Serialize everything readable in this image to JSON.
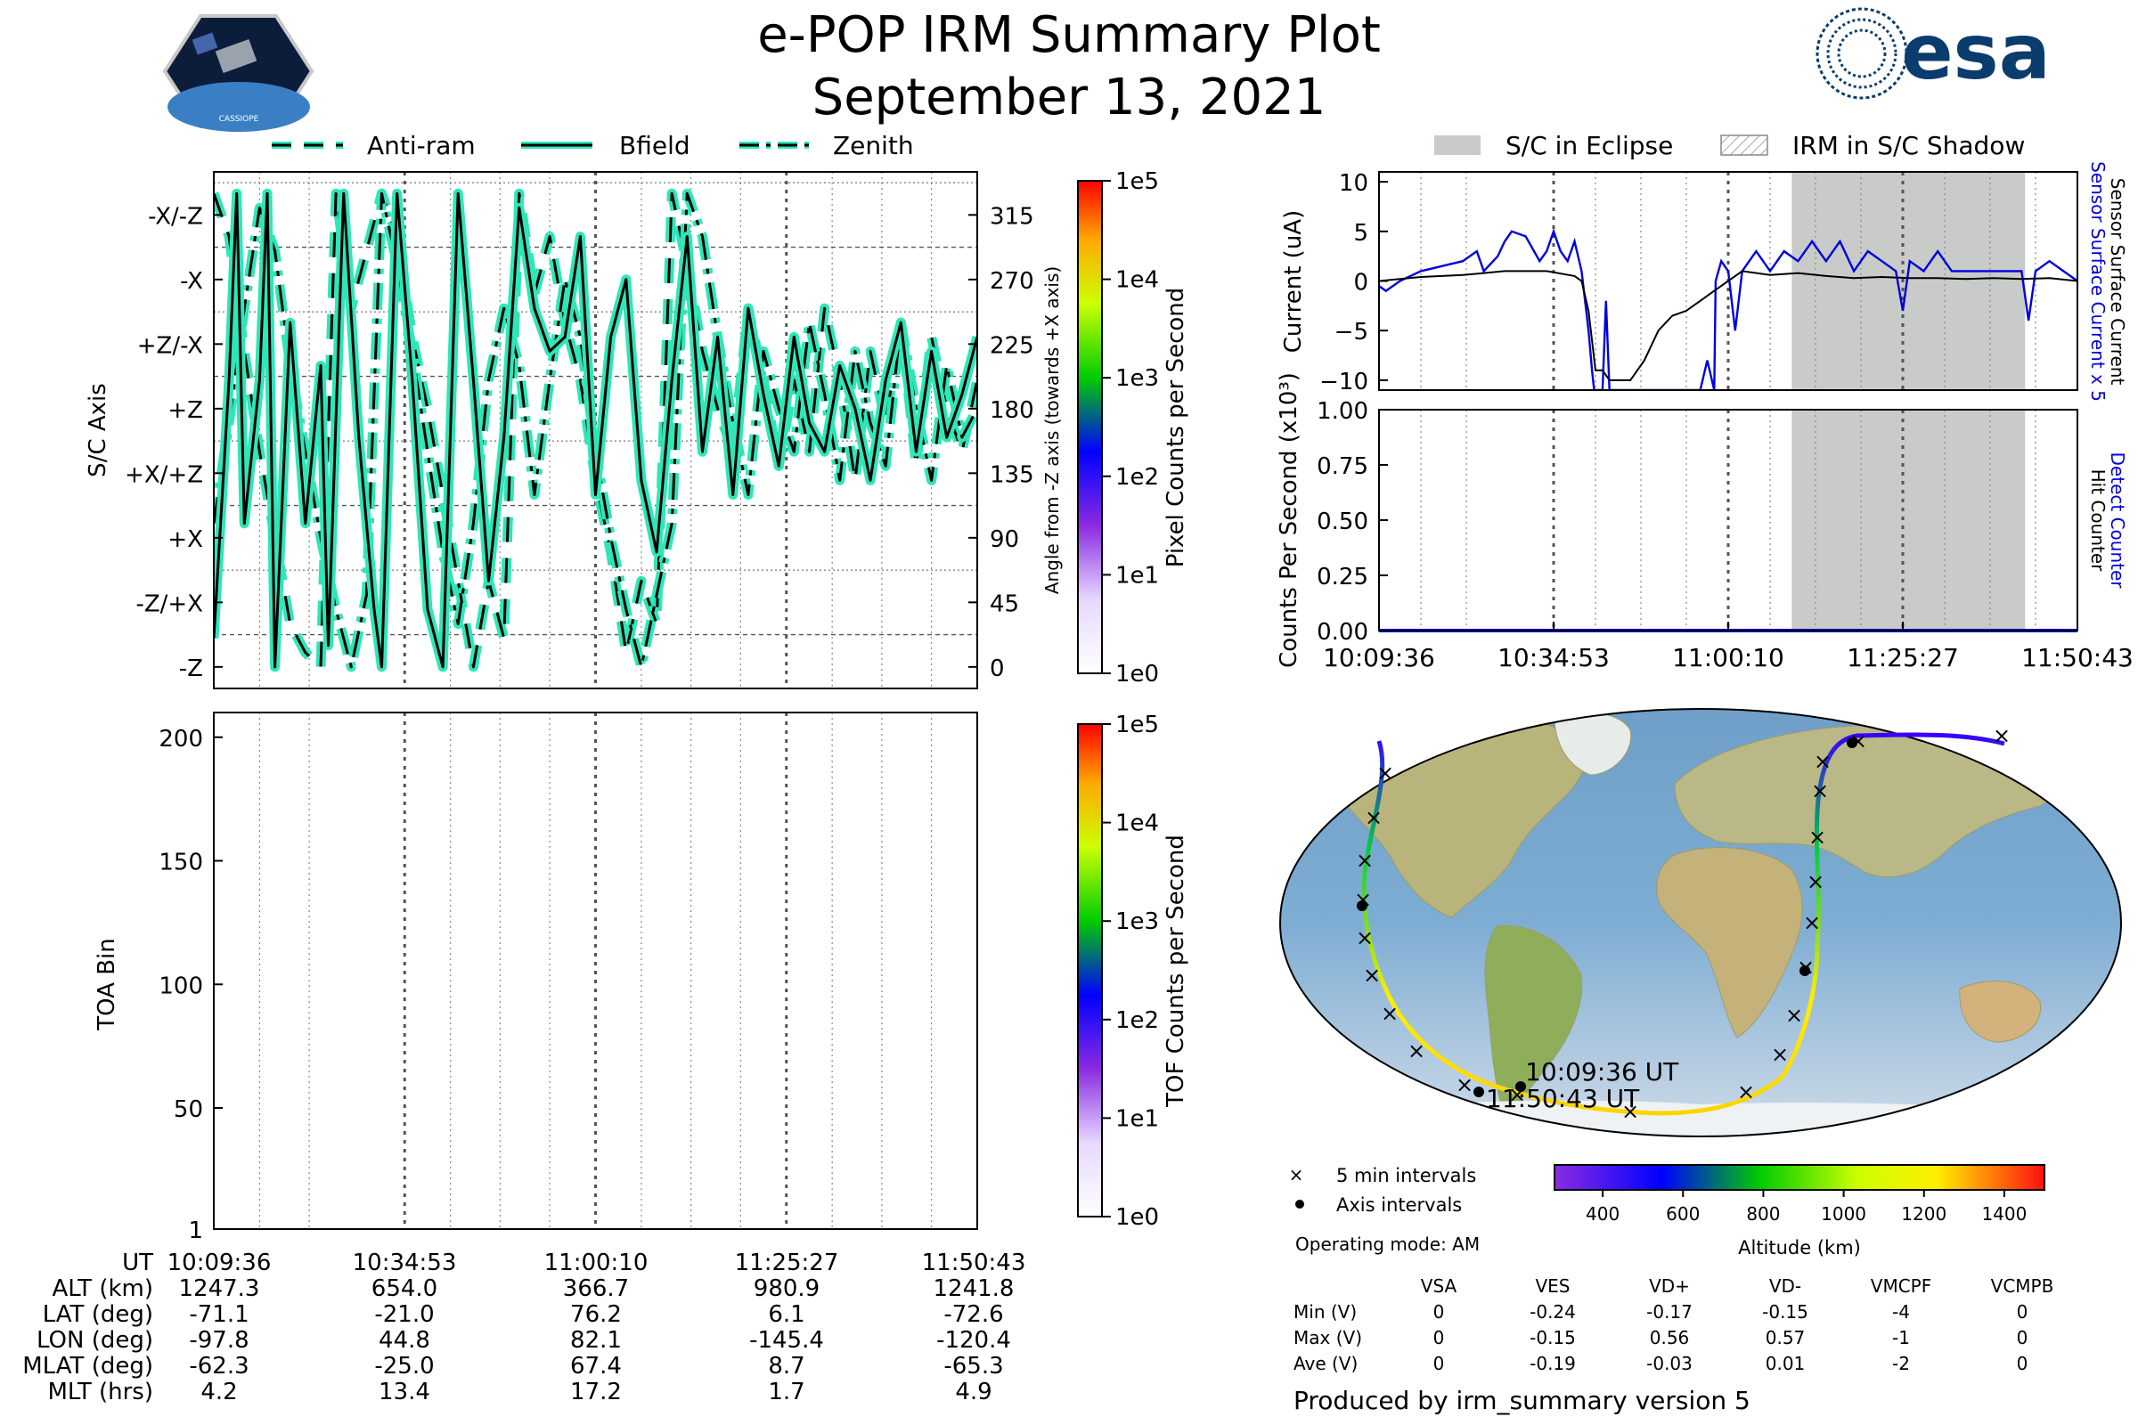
{
  "header": {
    "title": "e-POP IRM Summary Plot",
    "date": "September 13, 2021",
    "mission_logo_text": "CASSIOPE",
    "agency_logo_text": "esa"
  },
  "colors": {
    "trace_fill": "#2ee6b8",
    "trace_core": "#000000",
    "eclipse": "#c8cbc8",
    "current_raw": "#0000e0",
    "current_net": "#000000",
    "counter": "#0000e0"
  },
  "chart_data": [
    {
      "type": "line",
      "name": "orientation",
      "legend": [
        "Anti-ram",
        "Bfield",
        "Zenith"
      ],
      "ylabel": "S/C Axis",
      "ylabel_right": "Angle from -Z axis (towards +X axis)",
      "y_axis_labels": [
        "-X/-Z",
        "-X",
        "+Z/-X",
        "+Z",
        "+X/+Z",
        "+X",
        "-Z/+X",
        "-Z"
      ],
      "right_ticks": [
        "315",
        "270",
        "225",
        "180",
        "135",
        "90",
        "45",
        "0"
      ],
      "ylim": [
        -15,
        345
      ],
      "colorbar_label": "Pixel Counts per Second",
      "colorbar_ticks": [
        "1e5",
        "1e4",
        "1e3",
        "1e2",
        "1e1",
        "1e0"
      ],
      "bfield": [
        [
          0,
          20
        ],
        [
          2,
          200
        ],
        [
          3,
          330
        ],
        [
          4,
          100
        ],
        [
          6,
          200
        ],
        [
          7,
          330
        ],
        [
          8,
          0
        ],
        [
          10,
          240
        ],
        [
          12,
          100
        ],
        [
          14,
          210
        ],
        [
          15,
          15
        ],
        [
          17,
          330
        ],
        [
          19,
          160
        ],
        [
          21,
          40
        ],
        [
          22,
          0
        ],
        [
          24,
          330
        ],
        [
          26,
          200
        ],
        [
          28,
          40
        ],
        [
          30,
          0
        ],
        [
          32,
          330
        ],
        [
          34,
          200
        ],
        [
          36,
          60
        ],
        [
          38,
          160
        ],
        [
          40,
          320
        ],
        [
          42,
          250
        ],
        [
          44,
          220
        ],
        [
          46,
          230
        ],
        [
          48,
          300
        ],
        [
          50,
          120
        ],
        [
          52,
          230
        ],
        [
          54,
          270
        ],
        [
          56,
          130
        ],
        [
          58,
          80
        ],
        [
          60,
          200
        ],
        [
          62,
          300
        ],
        [
          64,
          150
        ],
        [
          66,
          230
        ],
        [
          68,
          120
        ],
        [
          70,
          250
        ],
        [
          72,
          190
        ],
        [
          74,
          140
        ],
        [
          76,
          230
        ],
        [
          78,
          170
        ],
        [
          80,
          150
        ],
        [
          82,
          210
        ],
        [
          84,
          180
        ],
        [
          86,
          130
        ],
        [
          88,
          200
        ],
        [
          90,
          240
        ],
        [
          92,
          150
        ],
        [
          94,
          220
        ],
        [
          96,
          160
        ],
        [
          98,
          190
        ],
        [
          100,
          230
        ]
      ],
      "antiram": [
        [
          0,
          330
        ],
        [
          2,
          300
        ],
        [
          4,
          220
        ],
        [
          6,
          150
        ],
        [
          8,
          90
        ],
        [
          10,
          30
        ],
        [
          12,
          10
        ],
        [
          14,
          0
        ],
        [
          16,
          330
        ],
        [
          18,
          250
        ],
        [
          20,
          290
        ],
        [
          22,
          330
        ],
        [
          24,
          300
        ],
        [
          26,
          230
        ],
        [
          28,
          180
        ],
        [
          30,
          120
        ],
        [
          32,
          60
        ],
        [
          34,
          0
        ],
        [
          36,
          60
        ],
        [
          38,
          20
        ],
        [
          40,
          330
        ],
        [
          42,
          260
        ],
        [
          44,
          300
        ],
        [
          46,
          240
        ],
        [
          48,
          200
        ],
        [
          50,
          130
        ],
        [
          52,
          80
        ],
        [
          54,
          10
        ],
        [
          56,
          60
        ],
        [
          58,
          30
        ],
        [
          60,
          330
        ],
        [
          62,
          280
        ],
        [
          64,
          220
        ],
        [
          66,
          180
        ],
        [
          68,
          150
        ],
        [
          70,
          250
        ],
        [
          72,
          200
        ],
        [
          74,
          140
        ],
        [
          76,
          200
        ],
        [
          78,
          150
        ],
        [
          80,
          250
        ],
        [
          82,
          200
        ],
        [
          84,
          130
        ],
        [
          86,
          220
        ],
        [
          88,
          170
        ],
        [
          90,
          240
        ],
        [
          92,
          140
        ],
        [
          94,
          230
        ],
        [
          96,
          180
        ],
        [
          98,
          150
        ],
        [
          100,
          200
        ]
      ],
      "zenith": [
        [
          0,
          100
        ],
        [
          2,
          170
        ],
        [
          4,
          250
        ],
        [
          6,
          320
        ],
        [
          8,
          290
        ],
        [
          10,
          210
        ],
        [
          12,
          150
        ],
        [
          14,
          90
        ],
        [
          16,
          40
        ],
        [
          18,
          0
        ],
        [
          20,
          50
        ],
        [
          22,
          330
        ],
        [
          24,
          280
        ],
        [
          26,
          220
        ],
        [
          28,
          150
        ],
        [
          30,
          80
        ],
        [
          32,
          30
        ],
        [
          34,
          100
        ],
        [
          36,
          200
        ],
        [
          38,
          250
        ],
        [
          40,
          210
        ],
        [
          42,
          120
        ],
        [
          44,
          200
        ],
        [
          46,
          270
        ],
        [
          48,
          230
        ],
        [
          50,
          150
        ],
        [
          52,
          90
        ],
        [
          54,
          40
        ],
        [
          56,
          0
        ],
        [
          58,
          50
        ],
        [
          60,
          100
        ],
        [
          62,
          330
        ],
        [
          64,
          300
        ],
        [
          66,
          230
        ],
        [
          68,
          170
        ],
        [
          70,
          120
        ],
        [
          72,
          220
        ],
        [
          74,
          180
        ],
        [
          76,
          150
        ],
        [
          78,
          240
        ],
        [
          80,
          190
        ],
        [
          82,
          130
        ],
        [
          84,
          220
        ],
        [
          86,
          170
        ],
        [
          88,
          140
        ],
        [
          90,
          240
        ],
        [
          92,
          180
        ],
        [
          94,
          130
        ],
        [
          96,
          210
        ],
        [
          98,
          160
        ],
        [
          100,
          180
        ]
      ]
    },
    {
      "type": "heatmap",
      "name": "toa",
      "ylabel": "TOA Bin",
      "yticks": [
        "200",
        "150",
        "100",
        "50",
        "1"
      ],
      "ylim": [
        1,
        210
      ],
      "colorbar_label": "TOF Counts per Second",
      "colorbar_ticks": [
        "1e5",
        "1e4",
        "1e3",
        "1e2",
        "1e1",
        "1e0"
      ],
      "values": []
    },
    {
      "type": "line",
      "name": "current",
      "legend": [
        "S/C in Eclipse",
        "IRM in S/C Shadow"
      ],
      "ylabel": "Current (uA)",
      "ylabel_right_1": "Sensor Surface Current x 5",
      "ylabel_right_2": "Sensor Surface Current",
      "yticks": [
        "10",
        "5",
        "0",
        "−5",
        "−10"
      ],
      "ylim": [
        -11,
        11
      ],
      "eclipse_span": [
        0.591,
        0.925
      ],
      "x_ticks": [
        "10:09:36",
        "10:34:53",
        "11:00:10",
        "11:25:27",
        "11:50:43"
      ],
      "series": [
        {
          "values": [
            [
              0,
              -0.5
            ],
            [
              1,
              -1
            ],
            [
              3,
              0
            ],
            [
              6,
              1
            ],
            [
              9,
              1.5
            ],
            [
              12,
              2
            ],
            [
              14,
              3
            ],
            [
              15,
              1
            ],
            [
              17,
              2.5
            ],
            [
              18,
              4
            ],
            [
              19,
              5
            ],
            [
              21,
              4.5
            ],
            [
              23,
              2
            ],
            [
              24,
              3
            ],
            [
              25,
              5
            ],
            [
              26,
              3
            ],
            [
              27,
              2
            ],
            [
              28,
              4
            ],
            [
              29,
              1
            ],
            [
              30,
              -5
            ],
            [
              30.5,
              -9
            ],
            [
              30.8,
              -11
            ],
            [
              32,
              -11
            ],
            [
              32.5,
              -2
            ],
            [
              33,
              -11
            ],
            [
              34,
              -11
            ],
            [
              36,
              -11
            ],
            [
              38,
              -11
            ],
            [
              40,
              -11
            ],
            [
              42,
              -11
            ],
            [
              44,
              -11
            ],
            [
              46,
              -11
            ],
            [
              47,
              -8
            ],
            [
              48,
              -11
            ],
            [
              48.2,
              0
            ],
            [
              49,
              2
            ],
            [
              50,
              1
            ],
            [
              51,
              -5
            ],
            [
              52,
              1
            ],
            [
              54,
              3
            ],
            [
              56,
              1
            ],
            [
              58,
              3
            ],
            [
              60,
              2
            ],
            [
              62,
              4
            ],
            [
              64,
              2
            ],
            [
              66,
              4
            ],
            [
              68,
              1
            ],
            [
              70,
              3
            ],
            [
              72,
              2
            ],
            [
              74,
              1
            ],
            [
              75,
              -3
            ],
            [
              76,
              2
            ],
            [
              78,
              1
            ],
            [
              80,
              3
            ],
            [
              82,
              1
            ],
            [
              84,
              1
            ],
            [
              86,
              1
            ],
            [
              88,
              1
            ],
            [
              90,
              1
            ],
            [
              92,
              1
            ],
            [
              93,
              -4
            ],
            [
              94,
              1
            ],
            [
              96,
              2
            ],
            [
              98,
              1
            ],
            [
              100,
              0
            ]
          ]
        },
        {
          "values": [
            [
              0,
              0
            ],
            [
              6,
              0.4
            ],
            [
              12,
              0.6
            ],
            [
              18,
              1
            ],
            [
              24,
              1
            ],
            [
              28,
              0.5
            ],
            [
              29,
              0
            ],
            [
              30,
              -3
            ],
            [
              30.5,
              -6
            ],
            [
              31,
              -9
            ],
            [
              32,
              -9
            ],
            [
              33,
              -10
            ],
            [
              34,
              -10
            ],
            [
              36,
              -10
            ],
            [
              38,
              -8
            ],
            [
              40,
              -5
            ],
            [
              42,
              -3.5
            ],
            [
              44,
              -3
            ],
            [
              46,
              -2
            ],
            [
              48,
              -1
            ],
            [
              50,
              0
            ],
            [
              52,
              1
            ],
            [
              56,
              0.6
            ],
            [
              60,
              0.8
            ],
            [
              64,
              0.5
            ],
            [
              68,
              0.3
            ],
            [
              72,
              0.4
            ],
            [
              76,
              0.3
            ],
            [
              80,
              0.3
            ],
            [
              84,
              0.2
            ],
            [
              88,
              0.3
            ],
            [
              92,
              0.2
            ],
            [
              96,
              0.3
            ],
            [
              100,
              0
            ]
          ]
        }
      ]
    },
    {
      "type": "line",
      "name": "counts",
      "ylabel": "Counts Per Second (x10³)",
      "ylabel_right_1": "Detect Counter",
      "ylabel_right_2": "Hit Counter",
      "yticks": [
        "1.00",
        "0.75",
        "0.50",
        "0.25",
        "0.00"
      ],
      "ylim": [
        0,
        1
      ],
      "x_ticks": [
        "10:09:36",
        "10:34:53",
        "11:00:10",
        "11:25:27",
        "11:50:43"
      ],
      "series": [
        {
          "values": [
            [
              0,
              0
            ],
            [
              100,
              0
            ]
          ]
        }
      ]
    },
    {
      "type": "scatter",
      "name": "ground_track",
      "markers_legend": [
        "5 min intervals",
        "Axis intervals"
      ],
      "annotations": [
        "10:09:36 UT",
        "11:50:43 UT"
      ],
      "colorbar_label": "Altitude (km)",
      "colorbar_ticks": [
        "400",
        "600",
        "800",
        "1000",
        "1200",
        "1400"
      ],
      "colorbar_range": [
        280,
        1500
      ]
    },
    {
      "type": "table",
      "name": "time_axis",
      "rows": [
        {
          "label": "UT",
          "values": [
            "10:09:36",
            "10:34:53",
            "11:00:10",
            "11:25:27",
            "11:50:43"
          ]
        },
        {
          "label": "ALT (km)",
          "values": [
            "1247.3",
            "654.0",
            "366.7",
            "980.9",
            "1241.8"
          ]
        },
        {
          "label": "LAT (deg)",
          "values": [
            "-71.1",
            "-21.0",
            "76.2",
            "6.1",
            "-72.6"
          ]
        },
        {
          "label": "LON (deg)",
          "values": [
            "-97.8",
            "44.8",
            "82.1",
            "-145.4",
            "-120.4"
          ]
        },
        {
          "label": "MLAT (deg)",
          "values": [
            "-62.3",
            "-25.0",
            "67.4",
            "8.7",
            "-65.3"
          ]
        },
        {
          "label": "MLT (hrs)",
          "values": [
            "4.2",
            "13.4",
            "17.2",
            "1.7",
            "4.9"
          ]
        }
      ]
    },
    {
      "type": "table",
      "name": "voltages",
      "operating_mode": "Operating mode: AM",
      "columns": [
        "VSA",
        "VES",
        "VD+",
        "VD-",
        "VMCPF",
        "VCMPB"
      ],
      "rows": [
        {
          "label": "Min (V)",
          "values": [
            "0",
            "-0.24",
            "-0.17",
            "-0.15",
            "-4",
            "0"
          ]
        },
        {
          "label": "Max (V)",
          "values": [
            "0",
            "-0.15",
            "0.56",
            "0.57",
            "-1",
            "0"
          ]
        },
        {
          "label": "Ave (V)",
          "values": [
            "0",
            "-0.19",
            "-0.03",
            "0.01",
            "-2",
            "0"
          ]
        }
      ]
    }
  ],
  "footer": {
    "produced_by": "Produced by irm_summary version 5"
  }
}
